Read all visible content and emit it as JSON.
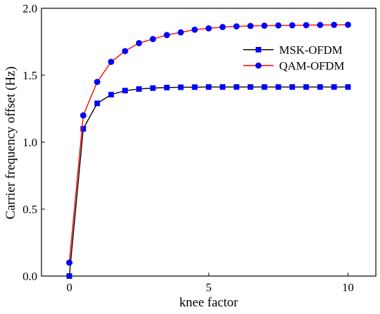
{
  "chart_data": {
    "type": "line",
    "title": "",
    "xlabel": "knee factor",
    "ylabel": "Carrier frequency offset (Hz)",
    "xlim": [
      -1,
      11
    ],
    "ylim": [
      0,
      2.0
    ],
    "xticks": [
      0,
      5,
      10
    ],
    "yticks": [
      0.0,
      0.5,
      1.0,
      1.5,
      2.0
    ],
    "xtick_labels": [
      "0",
      "5",
      "10"
    ],
    "ytick_labels": [
      "0.0",
      "0.5",
      "1.0",
      "1.5",
      "2.0"
    ],
    "legend_position": "top-right",
    "grid": false,
    "x": [
      0,
      0.5,
      1,
      1.5,
      2,
      2.5,
      3,
      3.5,
      4,
      4.5,
      5,
      5.5,
      6,
      6.5,
      7,
      7.5,
      8,
      8.5,
      9,
      9.5,
      10
    ],
    "series": [
      {
        "name": "MSK-OFDM",
        "color": "#0000ff",
        "line_color": "#000000",
        "marker": "square",
        "values": [
          0.0,
          1.1,
          1.29,
          1.355,
          1.385,
          1.397,
          1.404,
          1.408,
          1.41,
          1.411,
          1.412,
          1.412,
          1.412,
          1.412,
          1.412,
          1.412,
          1.412,
          1.412,
          1.412,
          1.412,
          1.412
        ]
      },
      {
        "name": "QAM-OFDM",
        "color": "#0000ff",
        "line_color": "#ff0000",
        "marker": "circle",
        "values": [
          0.1,
          1.2,
          1.45,
          1.6,
          1.68,
          1.74,
          1.77,
          1.8,
          1.82,
          1.84,
          1.85,
          1.86,
          1.865,
          1.868,
          1.87,
          1.872,
          1.873,
          1.874,
          1.875,
          1.876,
          1.877
        ]
      }
    ]
  }
}
